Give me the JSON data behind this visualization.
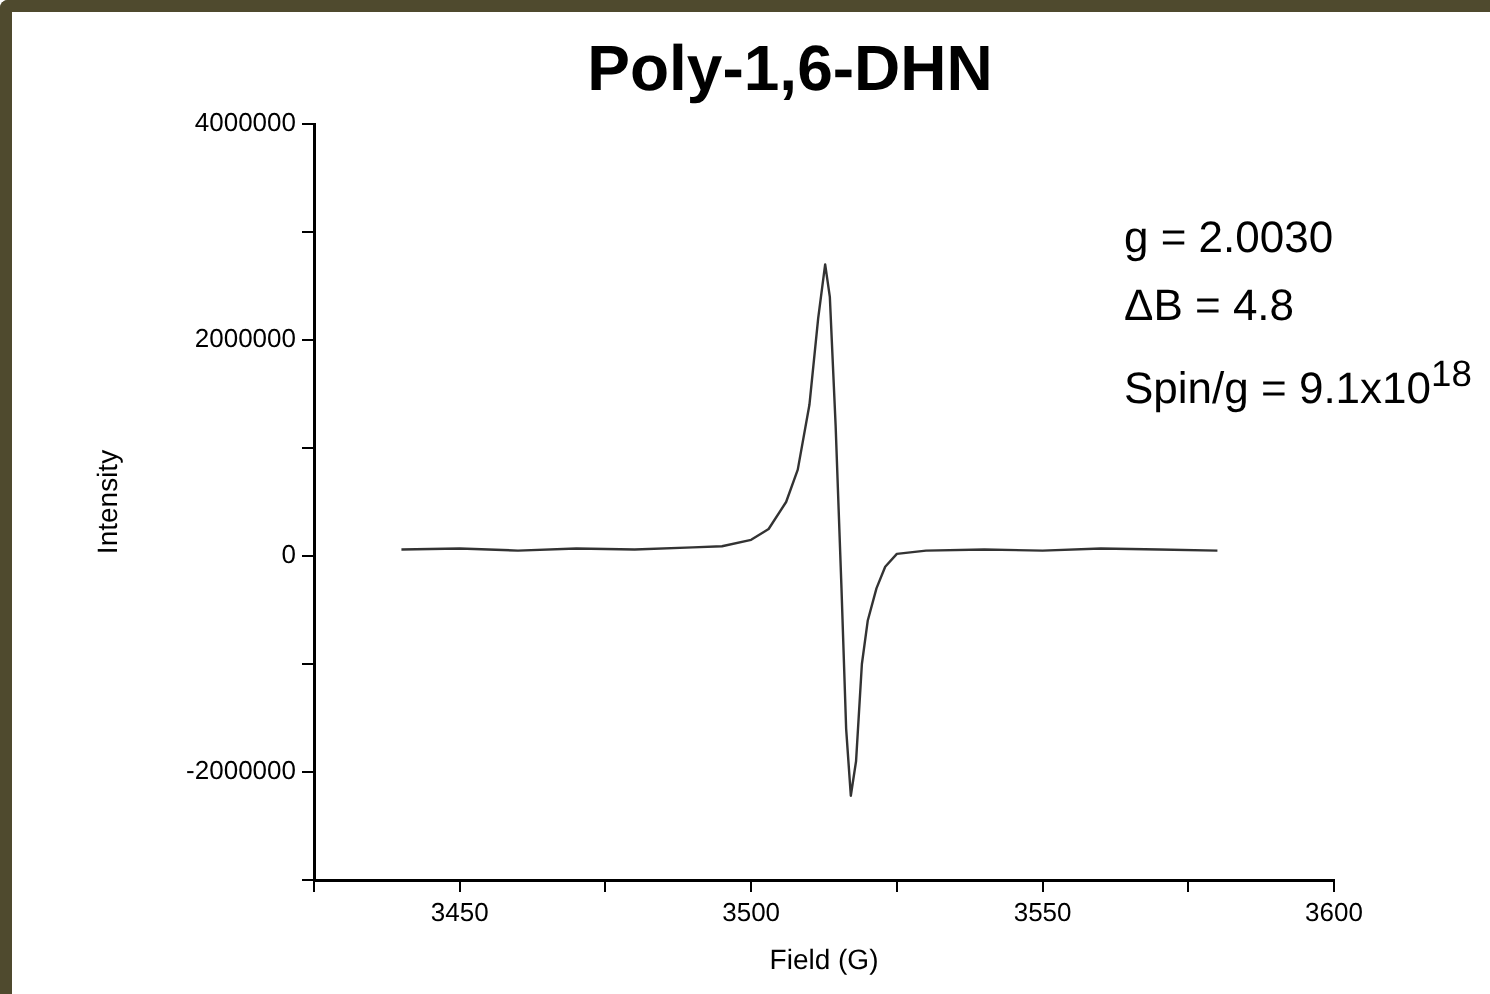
{
  "chart_data": {
    "type": "line",
    "title": "Poly-1,6-DHN",
    "xlabel": "Field (G)",
    "ylabel": "Intensity",
    "annotations": [
      "g = 2.0030",
      "ΔB = 4.8",
      "Spin/g = 9.1x10$^{18}$"
    ],
    "xlim": [
      3425,
      3600
    ],
    "xticks": [
      {
        "value": 3425,
        "label": null
      },
      3450,
      {
        "value": 3475,
        "label": null
      },
      3500,
      {
        "value": 3525,
        "label": null
      },
      3550,
      {
        "value": 3575,
        "label": null
      },
      3600
    ],
    "ylim": [
      -3000000,
      4000000
    ],
    "yticks": [
      {
        "value": -3000000,
        "label": null
      },
      -2000000,
      {
        "value": -1000000,
        "label": null
      },
      0,
      {
        "value": 1000000,
        "label": null
      },
      2000000,
      {
        "value": 3000000,
        "label": null
      },
      4000000
    ],
    "series": [
      {
        "color": "#333333",
        "x": [
          3440,
          3450,
          3460,
          3470,
          3480,
          3490,
          3495,
          3500,
          3503,
          3506,
          3508,
          3510,
          3511.5,
          3512.7,
          3513.5,
          3514.5,
          3515.5,
          3516.3,
          3517.1,
          3518,
          3519,
          3520,
          3521.5,
          3523,
          3525,
          3530,
          3540,
          3550,
          3560,
          3570,
          3580
        ],
        "values": [
          60000,
          70000,
          50000,
          70000,
          60000,
          80000,
          90000,
          150000,
          250000,
          500000,
          800000,
          1400000,
          2200000,
          2700000,
          2400000,
          1200000,
          -300000,
          -1600000,
          -2220000,
          -1900000,
          -1000000,
          -600000,
          -300000,
          -100000,
          20000,
          50000,
          60000,
          50000,
          70000,
          60000,
          50000
        ]
      }
    ]
  }
}
